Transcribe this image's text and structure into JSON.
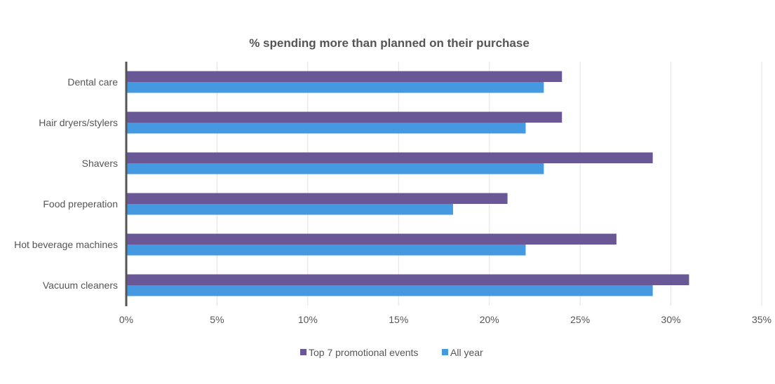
{
  "chart_data": {
    "type": "bar",
    "orientation": "horizontal",
    "title": "% spending more than planned on their purchase",
    "categories": [
      "Dental care",
      "Hair dryers/stylers",
      "Shavers",
      "Food preperation",
      "Hot beverage machines",
      "Vacuum cleaners"
    ],
    "series": [
      {
        "name": "Top 7 promotional events",
        "values": [
          24,
          24,
          29,
          21,
          27,
          31
        ],
        "color": "#6a5896"
      },
      {
        "name": "All year",
        "values": [
          23,
          22,
          23,
          18,
          22,
          29
        ],
        "color": "#4599e1"
      }
    ],
    "xlim": [
      0,
      35
    ],
    "xticks": [
      0,
      5,
      10,
      15,
      20,
      25,
      30,
      35
    ],
    "xtick_labels": [
      "0%",
      "5%",
      "10%",
      "15%",
      "20%",
      "25%",
      "30%",
      "35%"
    ],
    "xlabel": "",
    "ylabel": "",
    "grid": true,
    "legend_position": "bottom"
  }
}
